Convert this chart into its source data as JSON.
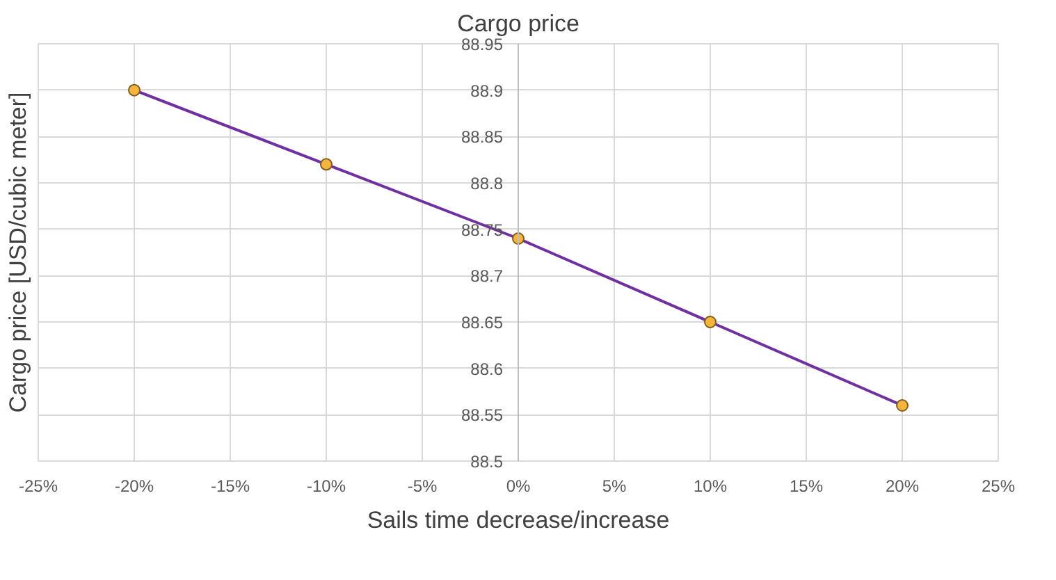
{
  "chart_data": {
    "type": "line",
    "title": "Cargo price",
    "xlabel": "Sails time decrease/increase",
    "ylabel": "Cargo price [USD/cubic meter]",
    "x": [
      -20,
      -10,
      0,
      10,
      20
    ],
    "series": [
      {
        "color": "#7030a0",
        "colors": [
          "#f5b43c",
          "#f5b43c",
          "#f5b43c",
          "#f5b43c",
          "#f5b43c"
        ],
        "values": [
          88.9,
          88.82,
          88.74,
          88.65,
          88.56
        ]
      }
    ],
    "xlim": [
      -25,
      25
    ],
    "xticks": [
      {
        "value": -25,
        "label": "-25%"
      },
      {
        "value": -20,
        "label": "-20%"
      },
      {
        "value": -15,
        "label": "-15%"
      },
      {
        "value": -10,
        "label": "-10%"
      },
      {
        "value": -5,
        "label": "-5%"
      },
      {
        "value": 0,
        "label": "0%"
      },
      {
        "value": 5,
        "label": "5%"
      },
      {
        "value": 10,
        "label": "10%"
      },
      {
        "value": 15,
        "label": "15%"
      },
      {
        "value": 20,
        "label": "20%"
      },
      {
        "value": 25,
        "label": "25%"
      }
    ],
    "ylim": [
      88.5,
      88.95
    ],
    "yticks": [
      88.5,
      88.55,
      88.6,
      88.65,
      88.7,
      88.75,
      88.8,
      88.85,
      88.9,
      88.95
    ],
    "grid": true,
    "marker": "circle",
    "line_style": "solid"
  }
}
